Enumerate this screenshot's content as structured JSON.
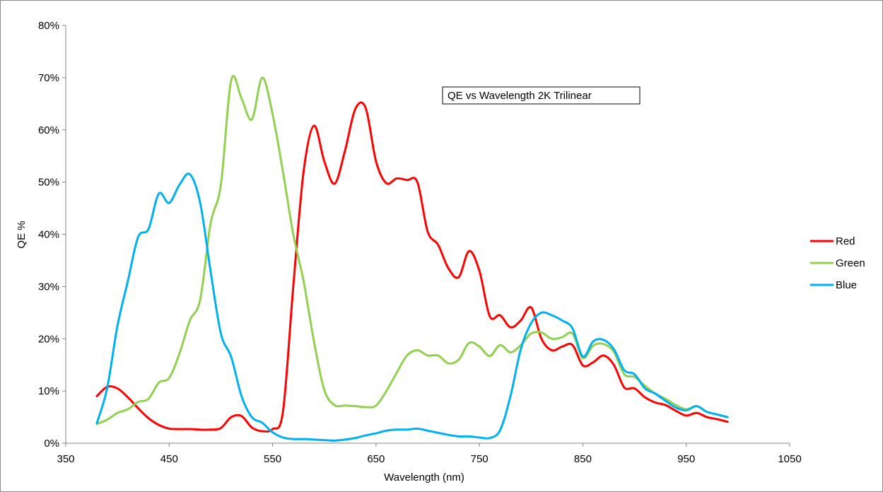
{
  "chart_data": {
    "type": "line",
    "title": "QE vs Wavelength 2K Trilinear",
    "xlabel": "Wavelength (nm)",
    "ylabel": "QE %",
    "xlim": [
      350,
      1050
    ],
    "ylim": [
      0,
      80
    ],
    "xticks": [
      "350",
      "450",
      "550",
      "650",
      "750",
      "850",
      "950",
      "1050"
    ],
    "xtick_values": [
      350,
      450,
      550,
      650,
      750,
      850,
      950,
      1050
    ],
    "yticks": [
      "0%",
      "10%",
      "20%",
      "30%",
      "40%",
      "50%",
      "60%",
      "70%",
      "80%"
    ],
    "ytick_values": [
      0,
      10,
      20,
      30,
      40,
      50,
      60,
      70,
      80
    ],
    "grid": false,
    "legend_position": "right",
    "series": [
      {
        "name": "Red",
        "color": "#ff0000",
        "x": [
          380,
          390,
          400,
          410,
          420,
          430,
          440,
          450,
          460,
          470,
          480,
          490,
          500,
          510,
          520,
          530,
          540,
          550,
          560,
          570,
          580,
          590,
          600,
          610,
          620,
          630,
          640,
          650,
          660,
          670,
          680,
          690,
          700,
          710,
          720,
          730,
          740,
          750,
          760,
          770,
          780,
          790,
          800,
          810,
          820,
          830,
          840,
          850,
          860,
          870,
          880,
          890,
          900,
          910,
          920,
          930,
          940,
          950,
          960,
          970,
          980,
          990
        ],
        "y": [
          9.0,
          10.8,
          10.5,
          8.8,
          6.7,
          4.8,
          3.5,
          2.8,
          2.7,
          2.7,
          2.6,
          2.6,
          2.9,
          5.0,
          5.2,
          3.0,
          2.3,
          2.7,
          6.0,
          30.0,
          52.0,
          60.8,
          54.0,
          49.7,
          56.0,
          64.0,
          64.2,
          54.0,
          49.8,
          50.7,
          50.4,
          50.0,
          40.5,
          38.0,
          33.5,
          31.8,
          36.8,
          33.0,
          24.3,
          24.5,
          22.2,
          23.5,
          26.0,
          20.0,
          17.8,
          18.5,
          18.8,
          14.9,
          15.5,
          16.8,
          15.0,
          10.7,
          10.5,
          8.8,
          7.8,
          7.3,
          6.2,
          5.3,
          5.8,
          5.0,
          4.6,
          4.1
        ]
      },
      {
        "name": "Green",
        "color": "#92d050",
        "x": [
          380,
          390,
          400,
          410,
          420,
          430,
          440,
          450,
          460,
          470,
          480,
          490,
          500,
          510,
          520,
          530,
          540,
          550,
          560,
          570,
          580,
          590,
          600,
          610,
          620,
          630,
          640,
          650,
          660,
          670,
          680,
          690,
          700,
          710,
          720,
          730,
          740,
          750,
          760,
          770,
          780,
          790,
          800,
          810,
          820,
          830,
          840,
          850,
          860,
          870,
          880,
          890,
          900,
          910,
          920,
          930,
          940,
          950,
          960,
          970,
          980,
          990
        ],
        "y": [
          3.7,
          4.5,
          5.8,
          6.5,
          7.9,
          8.5,
          11.6,
          12.5,
          17.2,
          23.5,
          27.5,
          42.0,
          49.5,
          69.5,
          66.0,
          62.0,
          70.0,
          63.0,
          52.0,
          40.0,
          31.0,
          19.5,
          10.2,
          7.3,
          7.2,
          7.1,
          6.9,
          7.2,
          10.0,
          13.5,
          16.8,
          17.8,
          16.8,
          16.8,
          15.3,
          16.0,
          19.2,
          18.5,
          16.7,
          18.8,
          17.4,
          18.8,
          21.0,
          21.2,
          20.0,
          20.3,
          21.0,
          16.3,
          18.7,
          19.0,
          17.5,
          13.2,
          12.7,
          11.0,
          9.5,
          8.5,
          7.3,
          6.5,
          7.1,
          6.0,
          5.5,
          5.0
        ]
      },
      {
        "name": "Blue",
        "color": "#00b0f0",
        "x": [
          380,
          390,
          400,
          410,
          420,
          430,
          440,
          450,
          460,
          470,
          480,
          490,
          500,
          510,
          520,
          530,
          540,
          550,
          560,
          570,
          580,
          590,
          600,
          610,
          620,
          630,
          640,
          650,
          660,
          670,
          680,
          690,
          700,
          710,
          720,
          730,
          740,
          750,
          760,
          770,
          780,
          790,
          800,
          810,
          820,
          830,
          840,
          850,
          860,
          870,
          880,
          890,
          900,
          910,
          920,
          930,
          940,
          950,
          960,
          970,
          980,
          990
        ],
        "y": [
          3.8,
          10.5,
          22.5,
          31.0,
          39.5,
          41.0,
          47.8,
          46.0,
          49.5,
          51.5,
          46.0,
          33.0,
          21.0,
          16.5,
          9.0,
          5.0,
          3.9,
          2.1,
          1.1,
          0.8,
          0.8,
          0.7,
          0.6,
          0.5,
          0.7,
          1.0,
          1.5,
          1.9,
          2.4,
          2.6,
          2.6,
          2.8,
          2.4,
          2.0,
          1.6,
          1.3,
          1.3,
          1.1,
          1.0,
          2.5,
          9.0,
          18.0,
          23.0,
          25.0,
          24.5,
          23.5,
          22.0,
          16.6,
          19.5,
          19.8,
          18.0,
          14.0,
          13.2,
          10.5,
          9.5,
          8.1,
          6.8,
          6.3,
          7.1,
          6.0,
          5.5,
          5.0
        ]
      }
    ]
  }
}
